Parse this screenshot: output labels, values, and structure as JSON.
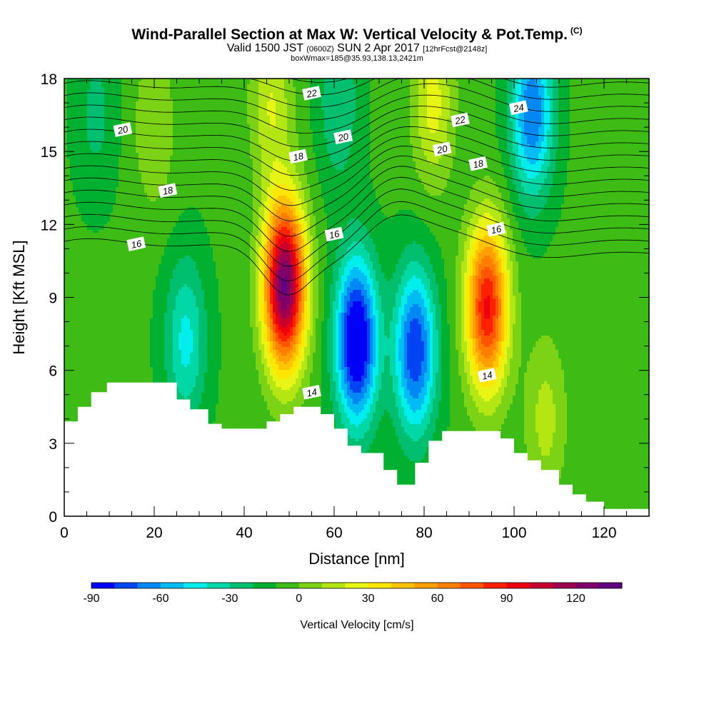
{
  "title": {
    "main": "Wind-Parallel Section at Max W: Vertical Velocity & Pot.Temp.",
    "copyright": "(C)",
    "valid_prefix": "Valid 1500 JST",
    "valid_utc": "(0600Z)",
    "valid_date": "SUN 2 Apr 2017",
    "forecast": "[12hrFcst@2148z]",
    "box_info": "boxWmax=185@35.93,138.13,2421m"
  },
  "chart_data": {
    "type": "heatmap",
    "xlabel": "Distance [nm]",
    "ylabel": "Height [Kft MSL]",
    "xlim": [
      0,
      130
    ],
    "ylim": [
      0,
      18
    ],
    "x_ticks": [
      0,
      20,
      40,
      60,
      80,
      100,
      120
    ],
    "y_ticks": [
      0,
      3,
      6,
      9,
      12,
      15,
      18
    ],
    "background_level": -8,
    "updrafts": [
      {
        "x": 49,
        "z": 9.5,
        "peak": 140
      },
      {
        "x": 94,
        "z": 8.6,
        "peak": 100
      },
      {
        "x": 107,
        "z": 4.0,
        "peak": 22
      },
      {
        "x": 46,
        "z": 17.0,
        "peak": 28
      },
      {
        "x": 82,
        "z": 17.0,
        "peak": 32
      },
      {
        "x": 20,
        "z": 16.0,
        "peak": 18
      },
      {
        "x": 120,
        "z": 9.0,
        "peak": 8
      }
    ],
    "downdrafts": [
      {
        "x": 65,
        "z": 7.2,
        "peak": -92
      },
      {
        "x": 78,
        "z": 6.8,
        "peak": -72
      },
      {
        "x": 104,
        "z": 16.6,
        "peak": -62
      },
      {
        "x": 27,
        "z": 7.2,
        "peak": -35
      },
      {
        "x": 61,
        "z": 17.0,
        "peak": -22
      },
      {
        "x": 7,
        "z": 16.5,
        "peak": -15
      }
    ],
    "terrain": [
      [
        0,
        3.9
      ],
      [
        3,
        3.9
      ],
      [
        3,
        4.5
      ],
      [
        6,
        4.5
      ],
      [
        6,
        5.1
      ],
      [
        9.5,
        5.1
      ],
      [
        9.5,
        5.5
      ],
      [
        25,
        5.5
      ],
      [
        25,
        4.8
      ],
      [
        28,
        4.8
      ],
      [
        28,
        4.4
      ],
      [
        32,
        4.4
      ],
      [
        32,
        3.8
      ],
      [
        35,
        3.8
      ],
      [
        35,
        3.6
      ],
      [
        45,
        3.6
      ],
      [
        45,
        3.9
      ],
      [
        48,
        3.9
      ],
      [
        48,
        4.2
      ],
      [
        51,
        4.2
      ],
      [
        51,
        4.5
      ],
      [
        57,
        4.5
      ],
      [
        57,
        4.2
      ],
      [
        60,
        4.2
      ],
      [
        60,
        3.6
      ],
      [
        63,
        3.6
      ],
      [
        63,
        2.9
      ],
      [
        66,
        2.9
      ],
      [
        66,
        2.6
      ],
      [
        71,
        2.6
      ],
      [
        71,
        1.9
      ],
      [
        74,
        1.9
      ],
      [
        74,
        1.3
      ],
      [
        78,
        1.3
      ],
      [
        78,
        2.2
      ],
      [
        81,
        2.2
      ],
      [
        81,
        3.1
      ],
      [
        84,
        3.1
      ],
      [
        84,
        3.5
      ],
      [
        97,
        3.5
      ],
      [
        97,
        3.2
      ],
      [
        100,
        3.2
      ],
      [
        100,
        2.6
      ],
      [
        103,
        2.6
      ],
      [
        103,
        2.3
      ],
      [
        106,
        2.3
      ],
      [
        106,
        1.9
      ],
      [
        110,
        1.9
      ],
      [
        110,
        1.3
      ],
      [
        113,
        1.3
      ],
      [
        113,
        0.9
      ],
      [
        116,
        0.9
      ],
      [
        116,
        0.6
      ],
      [
        120,
        0.6
      ],
      [
        120,
        0.3
      ],
      [
        130,
        0.3
      ]
    ],
    "isentropes": {
      "base_level": 11,
      "step": 0.5,
      "count": 29,
      "labeled": [
        {
          "label": "14",
          "x": 55,
          "z": 5.1
        },
        {
          "label": "14",
          "x": 94,
          "z": 5.8
        },
        {
          "label": "16",
          "x": 16,
          "z": 11.2
        },
        {
          "label": "16",
          "x": 60,
          "z": 11.6
        },
        {
          "label": "16",
          "x": 96,
          "z": 11.8
        },
        {
          "label": "18",
          "x": 23,
          "z": 13.4
        },
        {
          "label": "18",
          "x": 52,
          "z": 14.8
        },
        {
          "label": "18",
          "x": 92,
          "z": 14.5
        },
        {
          "label": "20",
          "x": 13,
          "z": 15.9
        },
        {
          "label": "20",
          "x": 62,
          "z": 15.6
        },
        {
          "label": "20",
          "x": 84,
          "z": 15.1
        },
        {
          "label": "22",
          "x": 55,
          "z": 17.4
        },
        {
          "label": "22",
          "x": 88,
          "z": 16.3
        },
        {
          "label": "24",
          "x": 101,
          "z": 16.8
        }
      ]
    },
    "colorbar": {
      "label": "Vertical Velocity [cm/s]",
      "min": -90,
      "max": 140,
      "step": 10,
      "tick_labels": [
        "-90",
        "-60",
        "-30",
        "0",
        "30",
        "60",
        "90",
        "120"
      ],
      "colors": [
        "#0000f8",
        "#0044f4",
        "#0088f4",
        "#00bcf4",
        "#00eeee",
        "#00d8a8",
        "#00c070",
        "#00b030",
        "#3cbc14",
        "#7cd214",
        "#b4e614",
        "#e8f414",
        "#ffe600",
        "#ffc400",
        "#ffa000",
        "#ff7e00",
        "#ff5400",
        "#ff2000",
        "#ee0010",
        "#c80030",
        "#a00050",
        "#80006a",
        "#600080"
      ]
    }
  }
}
